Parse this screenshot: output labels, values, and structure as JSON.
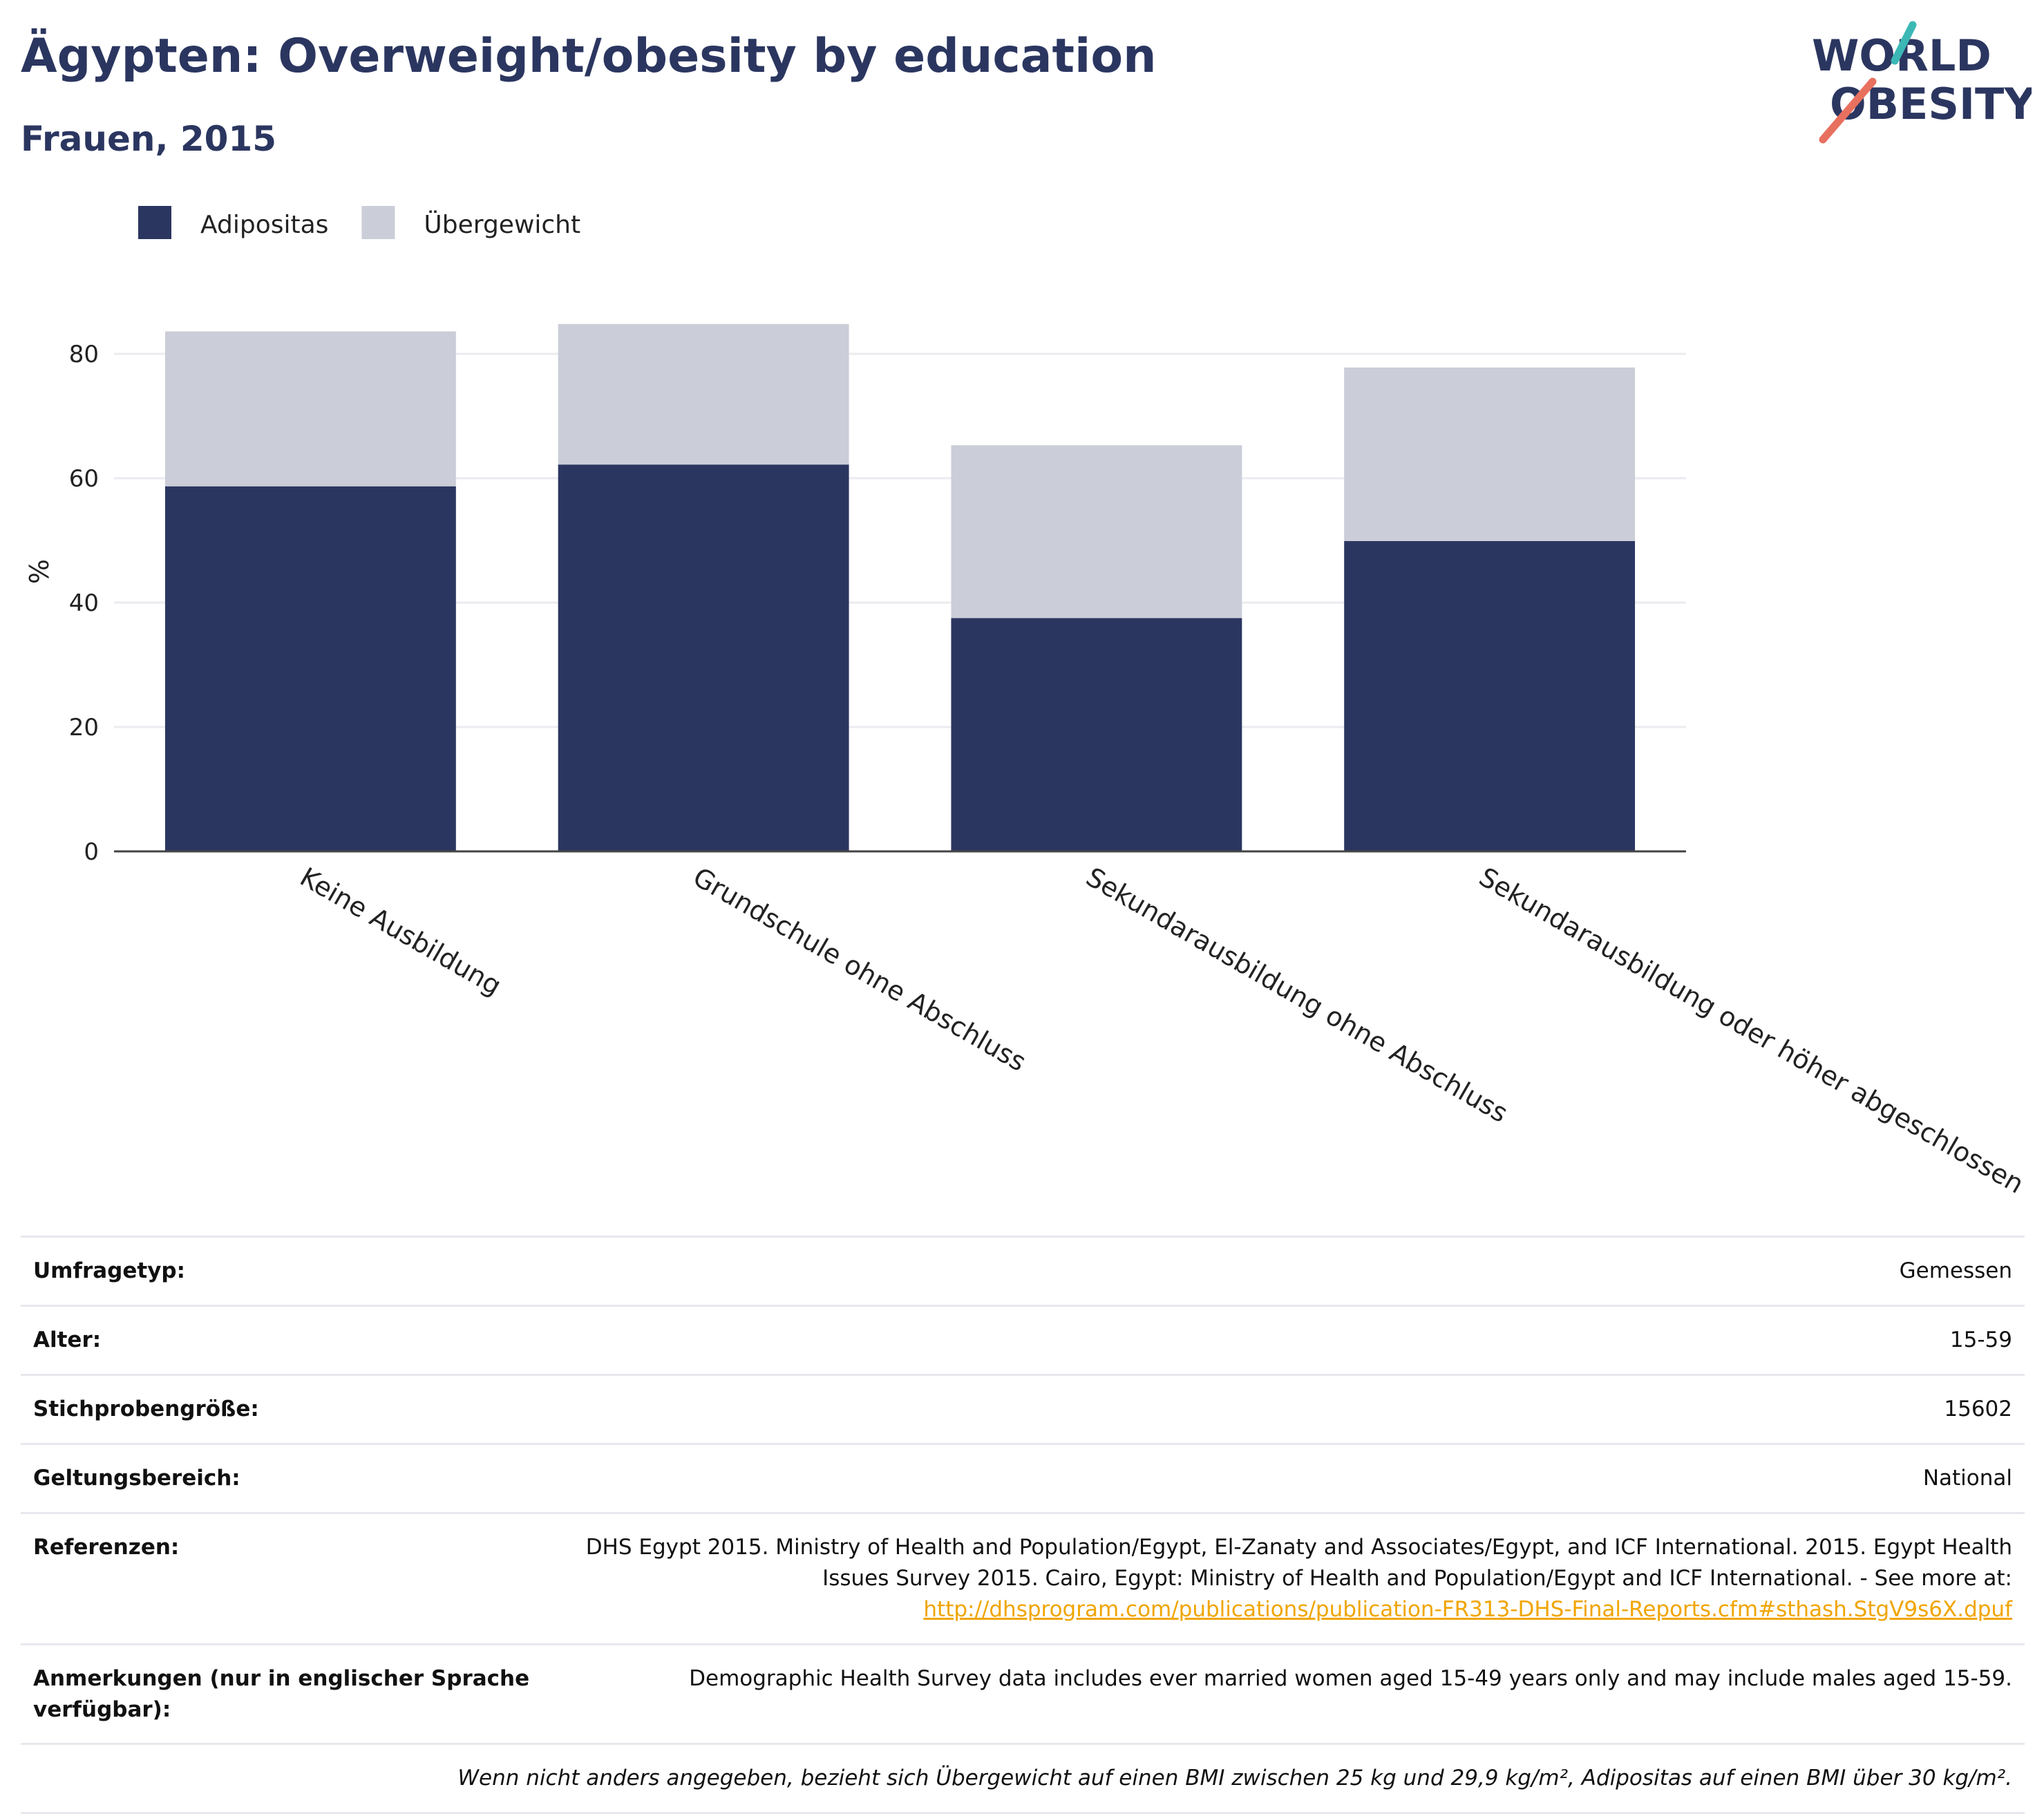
{
  "header": {
    "title": "Ägypten: Overweight/obesity by education",
    "subtitle": "Frauen, 2015",
    "logo_line1": "WORLD",
    "logo_line2": "OBESITY"
  },
  "colors": {
    "obesity": "#2b3660",
    "overweight": "#cbcdd8",
    "logo_teal": "#3bb8b5",
    "logo_coral": "#e8705f",
    "link": "#f0a500"
  },
  "chart_data": {
    "type": "bar",
    "stacked": true,
    "categories": [
      "Keine Ausbildung",
      "Grundschule ohne Abschluss",
      "Sekundarausbildung ohne Abschluss",
      "Sekundarausbildung oder höher abgeschlossen"
    ],
    "series": [
      {
        "name": "Adipositas",
        "values": [
          58.7,
          62.2,
          37.5,
          49.9
        ]
      },
      {
        "name": "Übergewicht",
        "values": [
          24.9,
          22.6,
          27.8,
          27.9
        ]
      }
    ],
    "ylabel": "%",
    "ylim": [
      0,
      90
    ],
    "yticks": [
      0,
      20,
      40,
      60,
      80
    ],
    "grid": true,
    "legend": "top-left"
  },
  "meta": {
    "rows": [
      {
        "key": "Umfragetyp:",
        "value": "Gemessen"
      },
      {
        "key": "Alter:",
        "value": "15-59"
      },
      {
        "key": "Stichprobengröße:",
        "value": "15602"
      },
      {
        "key": "Geltungsbereich:",
        "value": "National"
      }
    ],
    "references": {
      "key": "Referenzen:",
      "text": "DHS Egypt 2015. Ministry of Health and Population/Egypt, El-Zanaty and Associates/Egypt, and ICF International. 2015. Egypt Health Issues Survey 2015. Cairo, Egypt: Ministry of Health and Population/Egypt and ICF International. - See more at:",
      "link": "http://dhsprogram.com/publications/publication-FR313-DHS-Final-Reports.cfm#sthash.StgV9s6X.dpuf"
    },
    "notes": {
      "key": "Anmerkungen (nur in englischer Sprache verfügbar):",
      "value": "Demographic Health Survey data includes ever married women aged 15-49 years only and may include males aged 15-59."
    },
    "footnote": "Wenn nicht anders angegeben, bezieht sich Übergewicht auf einen BMI zwischen 25 kg und 29,9 kg/m², Adipositas auf einen BMI über 30 kg/m²."
  }
}
